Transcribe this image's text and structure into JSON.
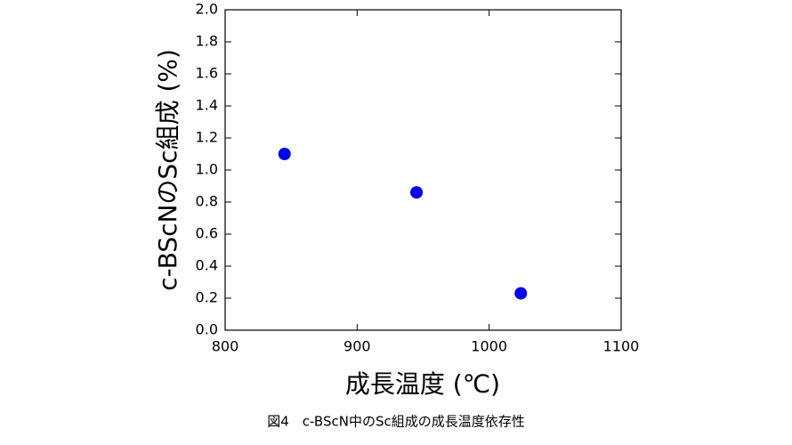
{
  "chart_data": {
    "type": "scatter",
    "x_label": "成長温度 (℃)",
    "y_label": "c-BScNのSc組成 (%)",
    "caption": "図4　c-BScN中のSc組成の成長温度依存性",
    "x": [
      845,
      945,
      1024
    ],
    "values": [
      1.1,
      0.86,
      0.23
    ],
    "color": "#0000ee",
    "xlim": [
      800,
      1100
    ],
    "xticks": [
      800,
      900,
      1000,
      1100
    ],
    "ylim": [
      0,
      2
    ],
    "yticks": [
      {
        "value": 0,
        "label": "0.0"
      },
      {
        "value": 0.2,
        "label": "0.2"
      },
      {
        "value": 0.4,
        "label": "0.4"
      },
      {
        "value": 0.6,
        "label": "0.6"
      },
      {
        "value": 0.8,
        "label": "0.8"
      },
      {
        "value": 1,
        "label": "1.0"
      },
      {
        "value": 1.2,
        "label": "1.2"
      },
      {
        "value": 1.4,
        "label": "1.4"
      },
      {
        "value": 1.6,
        "label": "1.6"
      },
      {
        "value": 1.8,
        "label": "1.8"
      },
      {
        "value": 2,
        "label": "2.0"
      }
    ]
  }
}
